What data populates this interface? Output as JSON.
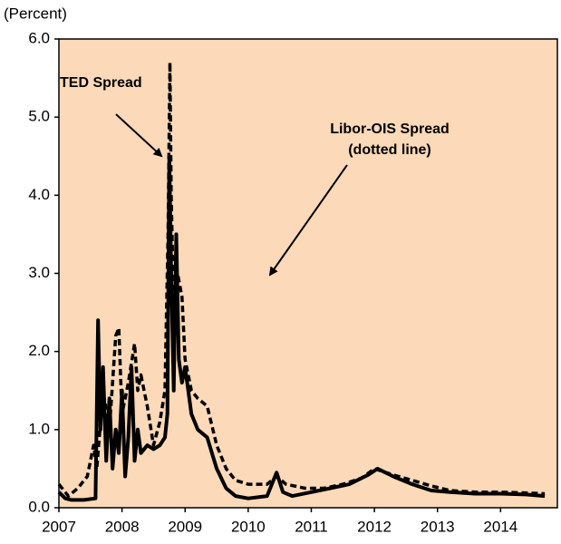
{
  "chart_data": {
    "type": "line",
    "ylabel": "(Percent)",
    "annotations": [
      "TED Spread",
      "Libor-OIS Spread",
      "(dotted line)"
    ],
    "xlim": [
      2007,
      2014.9
    ],
    "xticks": [
      2007,
      2008,
      2009,
      2010,
      2011,
      2012,
      2013,
      2014
    ],
    "ylim": [
      0,
      6
    ],
    "yticks": [
      {
        "value": 0,
        "label": "0.0"
      },
      {
        "value": 1,
        "label": "1.0"
      },
      {
        "value": 2,
        "label": "2.0"
      },
      {
        "value": 3,
        "label": "3.0"
      },
      {
        "value": 4,
        "label": "4.0"
      },
      {
        "value": 5,
        "label": "5.0"
      },
      {
        "value": 6,
        "label": "6.0"
      }
    ],
    "background": "#fcd9b8",
    "series": [
      {
        "color": "#000000",
        "style": "solid",
        "x": [
          2007.0,
          2007.1,
          2007.2,
          2007.4,
          2007.58,
          2007.62,
          2007.66,
          2007.7,
          2007.75,
          2007.8,
          2007.85,
          2007.9,
          2007.95,
          2008.0,
          2008.05,
          2008.1,
          2008.15,
          2008.2,
          2008.25,
          2008.3,
          2008.4,
          2008.5,
          2008.6,
          2008.68,
          2008.72,
          2008.75,
          2008.78,
          2008.82,
          2008.86,
          2008.9,
          2008.95,
          2009.0,
          2009.1,
          2009.2,
          2009.35,
          2009.5,
          2009.65,
          2009.8,
          2010.0,
          2010.3,
          2010.4,
          2010.45,
          2010.55,
          2010.7,
          2011.0,
          2011.3,
          2011.6,
          2011.9,
          2012.05,
          2012.3,
          2012.6,
          2012.9,
          2013.2,
          2013.6,
          2014.0,
          2014.4,
          2014.7
        ],
        "values": [
          0.2,
          0.12,
          0.1,
          0.1,
          0.12,
          2.4,
          1.0,
          1.8,
          0.6,
          1.4,
          0.5,
          1.0,
          0.7,
          1.5,
          0.4,
          0.9,
          1.8,
          0.6,
          1.0,
          0.7,
          0.8,
          0.75,
          0.8,
          0.9,
          1.2,
          4.5,
          3.0,
          1.5,
          3.5,
          1.9,
          1.6,
          1.8,
          1.2,
          1.0,
          0.9,
          0.5,
          0.25,
          0.15,
          0.12,
          0.15,
          0.35,
          0.45,
          0.2,
          0.15,
          0.2,
          0.25,
          0.3,
          0.42,
          0.5,
          0.4,
          0.3,
          0.22,
          0.2,
          0.18,
          0.18,
          0.17,
          0.15
        ]
      },
      {
        "color": "#000000",
        "style": "dashed",
        "x": [
          2007.0,
          2007.15,
          2007.3,
          2007.45,
          2007.55,
          2007.6,
          2007.7,
          2007.8,
          2007.9,
          2007.95,
          2008.0,
          2008.1,
          2008.2,
          2008.25,
          2008.3,
          2008.4,
          2008.5,
          2008.6,
          2008.68,
          2008.73,
          2008.76,
          2008.78,
          2008.82,
          2008.88,
          2008.95,
          2009.0,
          2009.1,
          2009.2,
          2009.35,
          2009.5,
          2009.65,
          2009.8,
          2010.0,
          2010.3,
          2010.45,
          2010.6,
          2010.9,
          2011.2,
          2011.5,
          2011.8,
          2012.0,
          2012.3,
          2012.6,
          2012.9,
          2013.2,
          2013.6,
          2014.0,
          2014.4,
          2014.7
        ],
        "values": [
          0.3,
          0.15,
          0.25,
          0.4,
          0.8,
          0.5,
          1.5,
          1.0,
          2.2,
          2.3,
          1.2,
          1.6,
          2.1,
          1.5,
          1.7,
          1.3,
          0.8,
          1.1,
          1.5,
          3.5,
          5.7,
          4.0,
          2.5,
          3.0,
          2.7,
          1.9,
          1.5,
          1.4,
          1.3,
          0.8,
          0.5,
          0.35,
          0.3,
          0.3,
          0.4,
          0.3,
          0.25,
          0.25,
          0.3,
          0.38,
          0.5,
          0.42,
          0.35,
          0.28,
          0.22,
          0.2,
          0.2,
          0.19,
          0.18
        ]
      }
    ]
  }
}
